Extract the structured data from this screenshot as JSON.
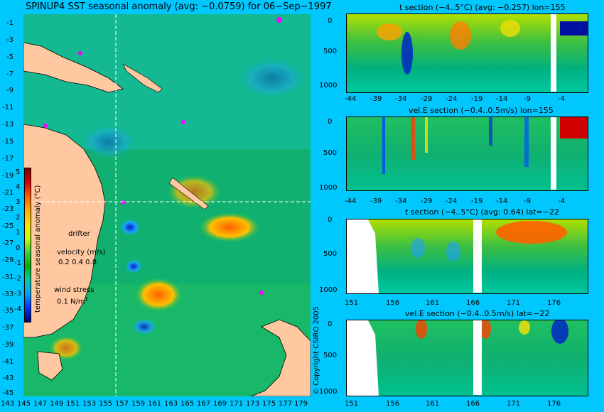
{
  "main_title": "SPINUP4 SST seasonal anomaly (avg: −0.0759) for 06−Sep−1997",
  "map": {
    "lat_ticks": [
      "-1",
      "-3",
      "-5",
      "-7",
      "-9",
      "-11",
      "-13",
      "-15",
      "-17",
      "-19",
      "-21",
      "-23",
      "-25",
      "-27",
      "-29",
      "-31",
      "-33",
      "-35",
      "-37",
      "-39",
      "-41",
      "-43",
      "-45"
    ],
    "lon_ticks": [
      "143",
      "145",
      "147",
      "149",
      "151",
      "153",
      "155",
      "157",
      "159",
      "161",
      "163",
      "165",
      "167",
      "169",
      "171",
      "173",
      "175",
      "177",
      "179"
    ],
    "colorbar_ticks": [
      "5",
      "4",
      "3",
      "2",
      "1",
      "0",
      "-1",
      "-2",
      "-3",
      "-4"
    ],
    "colorbar_label": "temperature seasonal anomaly (°C)",
    "drifter_label": "drifter",
    "velocity_label": "velocity (m/s)",
    "velocity_scale": "0.2 0.4 0.8",
    "wind_label": "wind stress",
    "wind_scale": "0.1 N/m",
    "wind_exponent": "2"
  },
  "copyright": "© Copyright CSIRO 2005",
  "panels": [
    {
      "title": "t section (−4..5°C) (avg: −0.257) lon=155",
      "x_ticks": [
        "-44",
        "-39",
        "-34",
        "-29",
        "-24",
        "-19",
        "-14",
        "-9",
        "-4"
      ],
      "y_ticks": [
        "0",
        "500",
        "1000"
      ]
    },
    {
      "title": "vel.E section (−0.4..0.5m/s) lon=155",
      "x_ticks": [
        "-44",
        "-39",
        "-34",
        "-29",
        "-24",
        "-19",
        "-14",
        "-9",
        "-4"
      ],
      "y_ticks": [
        "0",
        "500",
        "1000"
      ]
    },
    {
      "title": "t section (−4..5°C) (avg: 0.64) lat=−22",
      "x_ticks": [
        "151",
        "156",
        "161",
        "166",
        "171",
        "176"
      ],
      "y_ticks": [
        "0",
        "500",
        "1000"
      ]
    },
    {
      "title": "vel.E section (−0.4..0.5m/s) lat=−22",
      "x_ticks": [
        "151",
        "156",
        "161",
        "166",
        "171",
        "176"
      ],
      "y_ticks": [
        "0",
        "500",
        "1000"
      ]
    }
  ]
}
